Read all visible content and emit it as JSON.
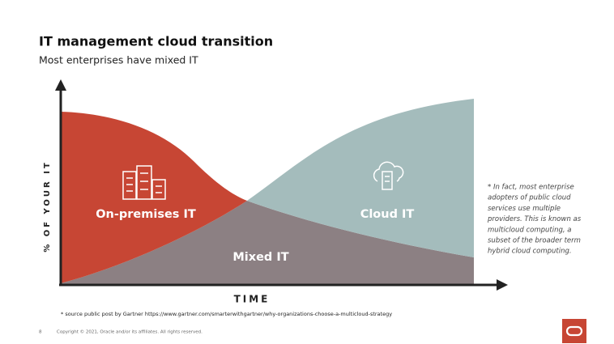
{
  "header": {
    "title": "IT management cloud transition",
    "subtitle": "Most enterprises have mixed IT"
  },
  "diagram": {
    "y_axis_label": "% OF YOUR IT",
    "x_axis_label": "TIME",
    "regions": {
      "on_premises": "On-premises IT",
      "cloud": "Cloud IT",
      "mixed": "Mixed IT"
    }
  },
  "note": [
    "* In fact, most enterprise",
    "adopters of public cloud",
    "services use multiple",
    "providers. This is known as",
    "multicloud computing, a",
    "subset of the broader term",
    "hybrid cloud computing."
  ],
  "source": "* source public post by Gartner https://www.gartner.com/smarterwithgartner/why-organizations-choose-a-multicloud-strategy",
  "footer": {
    "page": "8",
    "copyright": "Copyright © 2021, Oracle and/or its affiliates. All rights reserved."
  }
}
